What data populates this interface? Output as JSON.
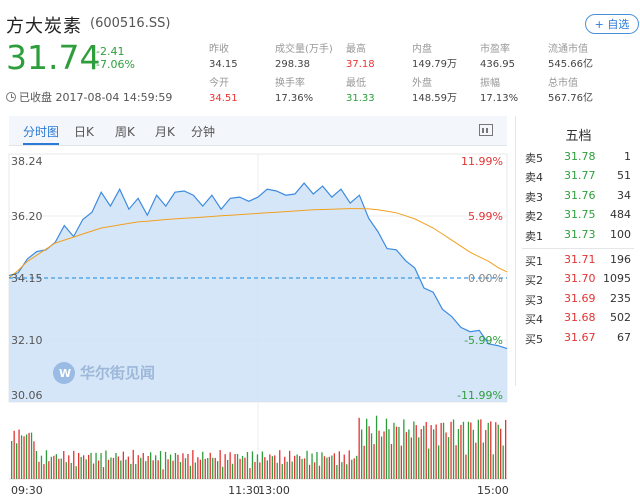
{
  "header": {
    "name": "方大炭素",
    "code": "(600516.SS)",
    "add_button": "+ 自选",
    "price": "31.74",
    "change": "-2.41",
    "change_pct": "-7.06%",
    "status": "已收盘 2017-08-04 14:59:59"
  },
  "stats": [
    {
      "label": "昨收",
      "value": "34.15",
      "color": "neutral"
    },
    {
      "label": "成交量(万手)",
      "value": "298.38",
      "color": "neutral"
    },
    {
      "label": "最高",
      "value": "37.18",
      "color": "red"
    },
    {
      "label": "内盘",
      "value": "149.79万",
      "color": "neutral"
    },
    {
      "label": "市盈率",
      "value": "436.95",
      "color": "neutral"
    },
    {
      "label": "流通市值",
      "value": "545.66亿",
      "color": "neutral"
    },
    {
      "label": "今开",
      "value": "34.51",
      "color": "red"
    },
    {
      "label": "换手率",
      "value": "17.36%",
      "color": "neutral"
    },
    {
      "label": "最低",
      "value": "31.33",
      "color": "green"
    },
    {
      "label": "外盘",
      "value": "148.59万",
      "color": "neutral"
    },
    {
      "label": "振幅",
      "value": "17.13%",
      "color": "neutral"
    },
    {
      "label": "总市值",
      "value": "567.76亿",
      "color": "neutral"
    }
  ],
  "tabs": [
    "分时图",
    "日K",
    "周K",
    "月K",
    "分钟"
  ],
  "chart_icon": "chart-icon",
  "watermark": "华尔街见闻",
  "chart_data": {
    "type": "line",
    "title": "",
    "prev_close": 34.15,
    "ylim": [
      30.06,
      38.24
    ],
    "y_ticks": [
      "38.24",
      "36.20",
      "34.15",
      "32.10",
      "30.06"
    ],
    "pct_ticks": [
      "11.99%",
      "5.99%",
      "0.00%",
      "-5.99%",
      "-11.99%"
    ],
    "x_ticks": [
      "09:30",
      "11:30",
      "13:00",
      "15:00"
    ],
    "series": [
      {
        "values": [
          34.15,
          34.4,
          34.7,
          35.1,
          35.0,
          35.4,
          35.8,
          35.6,
          36.0,
          36.4,
          36.9,
          36.6,
          37.0,
          36.5,
          36.7,
          36.3,
          36.8,
          36.6,
          36.9,
          37.1,
          36.8,
          36.6,
          36.8,
          36.5,
          36.7,
          36.9,
          36.6,
          36.9,
          37.0,
          37.1,
          36.8,
          37.0,
          37.2,
          37.0,
          37.1,
          36.9,
          37.0,
          36.7,
          36.8,
          36.2,
          35.6,
          35.2,
          35.0,
          34.8,
          34.4,
          33.9,
          33.6,
          33.2,
          32.8,
          32.6,
          32.3,
          32.5,
          31.9,
          32.0,
          31.74
        ]
      },
      {
        "values": [
          34.15,
          34.4,
          34.7,
          34.9,
          35.1,
          35.3,
          35.4,
          35.5,
          35.6,
          35.7,
          35.8,
          35.85,
          35.9,
          35.95,
          36.0,
          36.02,
          36.05,
          36.08,
          36.1,
          36.12,
          36.14,
          36.16,
          36.18,
          36.2,
          36.22,
          36.24,
          36.26,
          36.28,
          36.3,
          36.32,
          36.34,
          36.36,
          36.38,
          36.4,
          36.41,
          36.42,
          36.43,
          36.44,
          36.44,
          36.43,
          36.4,
          36.35,
          36.3,
          36.2,
          36.1,
          35.95,
          35.8,
          35.6,
          35.4,
          35.2,
          35.0,
          34.85,
          34.7,
          34.5,
          34.35
        ]
      }
    ]
  },
  "order_book": {
    "title": "五档",
    "asks": [
      {
        "name": "卖5",
        "price": "31.78",
        "volume": "1"
      },
      {
        "name": "卖4",
        "price": "31.77",
        "volume": "51"
      },
      {
        "name": "卖3",
        "price": "31.76",
        "volume": "34"
      },
      {
        "name": "卖2",
        "price": "31.75",
        "volume": "484"
      },
      {
        "name": "卖1",
        "price": "31.73",
        "volume": "100"
      }
    ],
    "bids": [
      {
        "name": "买1",
        "price": "31.71",
        "volume": "196"
      },
      {
        "name": "买2",
        "price": "31.70",
        "volume": "1095"
      },
      {
        "name": "买3",
        "price": "31.69",
        "volume": "235"
      },
      {
        "name": "买4",
        "price": "31.68",
        "volume": "502"
      },
      {
        "name": "买5",
        "price": "31.67",
        "volume": "67"
      }
    ]
  },
  "colors": {
    "up": "#e33333",
    "down": "#2e9e3c",
    "accent": "#2a7ad6",
    "avg_line": "#f0a020"
  }
}
